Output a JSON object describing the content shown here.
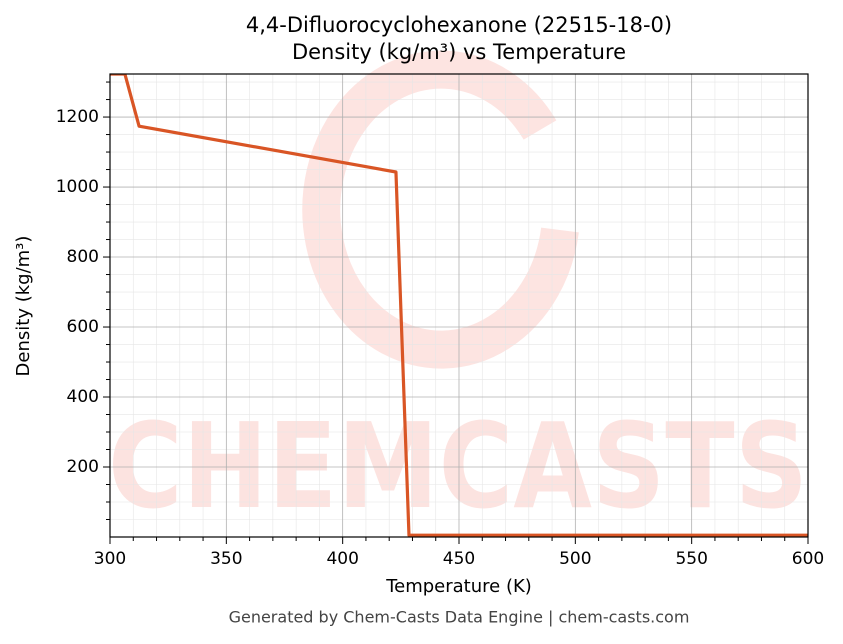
{
  "chart_data": {
    "type": "line",
    "title": "4,4-Difluorocyclohexanone (22515-18-0)",
    "subtitle": "Density (kg/m³) vs Temperature",
    "x_label": "Temperature (K)",
    "y_label": "Density (kg/m³)",
    "footer": "Generated by Chem-Casts Data Engine | chem-casts.com",
    "watermark": "CHEMCASTS",
    "x": [
      300,
      306.4,
      312.5,
      422.9,
      428.5,
      600
    ],
    "series": [
      {
        "name": "Density",
        "color": "#d95525",
        "values": [
          1323,
          1323,
          1174,
          1043,
          5,
          5
        ]
      }
    ],
    "xlim": [
      300,
      600
    ],
    "xticks": [
      300,
      350,
      400,
      450,
      500,
      550,
      600
    ],
    "ylim": [
      0,
      1323
    ],
    "yticks": [
      200,
      400,
      600,
      800,
      1000,
      1200
    ],
    "xminorticks": [
      310,
      320,
      330,
      340,
      360,
      370,
      380,
      390,
      410,
      420,
      430,
      440,
      460,
      470,
      480,
      490,
      510,
      520,
      530,
      540,
      560,
      570,
      580,
      590
    ],
    "yminorticks": [
      50,
      100,
      150,
      250,
      300,
      350,
      450,
      500,
      550,
      650,
      700,
      750,
      850,
      900,
      950,
      1050,
      1100,
      1150,
      1250,
      1300
    ],
    "grid": true
  }
}
